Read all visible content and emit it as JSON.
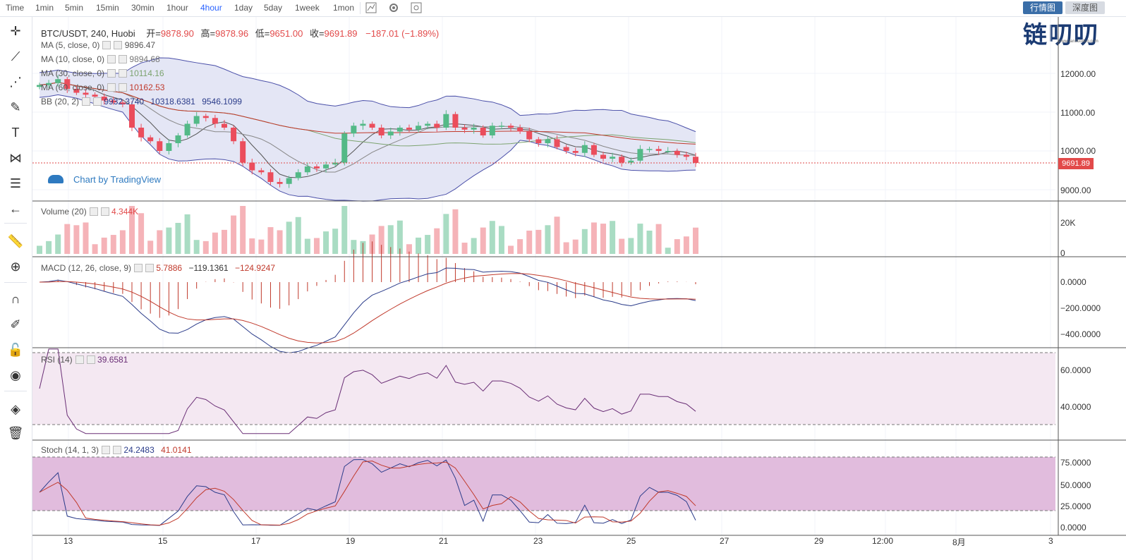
{
  "toolbar": {
    "timeframes": [
      "Time",
      "1min",
      "5min",
      "15min",
      "30min",
      "1hour",
      "4hour",
      "1day",
      "5day",
      "1week",
      "1mon"
    ],
    "active_timeframe": "4hour",
    "quote_button": "行情图",
    "depth_button": "深度图",
    "watermark": "链叨叨",
    "watermark_url": "www.lianduoduo.com"
  },
  "main_legend": {
    "symbol": "BTC/USDT, 240, Huobi",
    "open_label": "开=",
    "open": "9878.90",
    "high_label": "高=",
    "high": "9878.96",
    "low_label": "低=",
    "low": "9651.00",
    "close_label": "收=",
    "close": "9691.89",
    "change": "−187.01 (−1.89%)",
    "ma5": {
      "label": "MA (5, close, 0)",
      "value": "9896.47"
    },
    "ma10": {
      "label": "MA (10, close, 0)",
      "value": "9894.68"
    },
    "ma30": {
      "label": "MA (30, close, 0)",
      "value": "10114.16"
    },
    "ma60": {
      "label": "MA (60, close, 0)",
      "value": "10162.53"
    },
    "bb": {
      "label": "BB (20, 2)",
      "v1": "9932.3740",
      "v2": "10318.6381",
      "v3": "9546.1099"
    }
  },
  "tv_logo": "Chart by TradingView",
  "price_axis": [
    "12000.00",
    "11000.00",
    "10000.00",
    "9000.00"
  ],
  "last_price": "9691.89",
  "volume_legend": {
    "label": "Volume (20)",
    "value": "4.344K"
  },
  "volume_axis": [
    "20K",
    "0"
  ],
  "macd_legend": {
    "label": "MACD (12, 26, close, 9)",
    "v1": "5.7886",
    "v2": "−119.1361",
    "v3": "−124.9247"
  },
  "macd_axis": [
    "0.0000",
    "−200.0000",
    "−400.0000"
  ],
  "rsi_legend": {
    "label": "RSI (14)",
    "value": "39.6581"
  },
  "rsi_axis": [
    "60.0000",
    "40.0000"
  ],
  "stoch_legend": {
    "label": "Stoch (14, 1, 3)",
    "v1": "24.2483",
    "v2": "41.0141"
  },
  "stoch_axis": [
    "75.0000",
    "50.0000",
    "25.0000",
    "0.0000"
  ],
  "time_axis": [
    "13",
    "15",
    "17",
    "19",
    "21",
    "23",
    "25",
    "27",
    "29",
    "12:00",
    "8月",
    "3"
  ],
  "colors": {
    "up": "#53b987",
    "down": "#eb4d5c",
    "bb_fill": "#e4e6f5",
    "bb_line": "#4a4fa8",
    "rsi_bg": "#f4e8f2",
    "stoch_bg": "#e1bcdd"
  },
  "chart_data": {
    "type": "candlestick",
    "closes": [
      11700,
      11750,
      11850,
      11600,
      11500,
      11450,
      11400,
      11300,
      11250,
      11200,
      10600,
      10350,
      10250,
      10000,
      10200,
      10400,
      10700,
      10900,
      10850,
      10700,
      10600,
      10250,
      9700,
      9500,
      9450,
      9200,
      9150,
      9300,
      9450,
      9600,
      9550,
      9650,
      9700,
      10450,
      10650,
      10700,
      10600,
      10400,
      10500,
      10600,
      10550,
      10650,
      10700,
      10600,
      10950,
      10600,
      10550,
      10600,
      10400,
      10650,
      10650,
      10600,
      10500,
      10300,
      10200,
      10300,
      10100,
      10000,
      9950,
      10150,
      9900,
      9800,
      9850,
      9700,
      9750,
      10050,
      10050,
      10000,
      10000,
      9900,
      9850,
      9692
    ]
  }
}
